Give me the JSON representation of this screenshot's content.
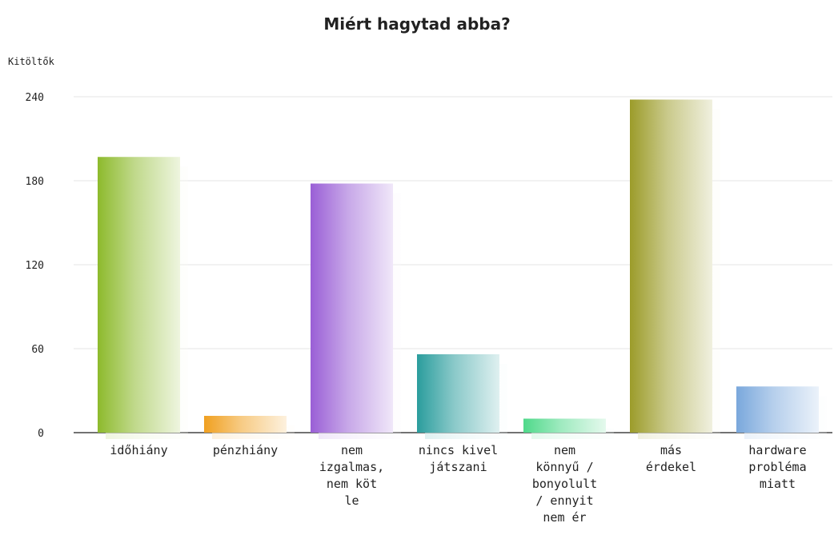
{
  "chart_data": {
    "type": "bar",
    "title": "Miért hagytad abba?",
    "ylabel": "Kitöltők",
    "xlabel": "",
    "ylim": [
      0,
      240
    ],
    "yticks": [
      0,
      60,
      120,
      180,
      240
    ],
    "grid": true,
    "categories": [
      [
        "időhiány"
      ],
      [
        "pénzhiány"
      ],
      [
        "nem",
        "izgalmas,",
        "nem köt",
        "le"
      ],
      [
        "nincs kivel",
        "játszani"
      ],
      [
        "nem",
        "könnyű /",
        "bonyolult",
        "/ ennyit",
        "nem ér"
      ],
      [
        "más",
        "érdekel"
      ],
      [
        "hardware",
        "probléma",
        "miatt"
      ]
    ],
    "values": [
      197,
      12,
      178,
      56,
      10,
      238,
      33
    ],
    "colors": [
      "#8dba2c",
      "#f0a020",
      "#9a5fd6",
      "#2a9d9d",
      "#4fd98a",
      "#9c9c2a",
      "#7aa8dc"
    ]
  }
}
